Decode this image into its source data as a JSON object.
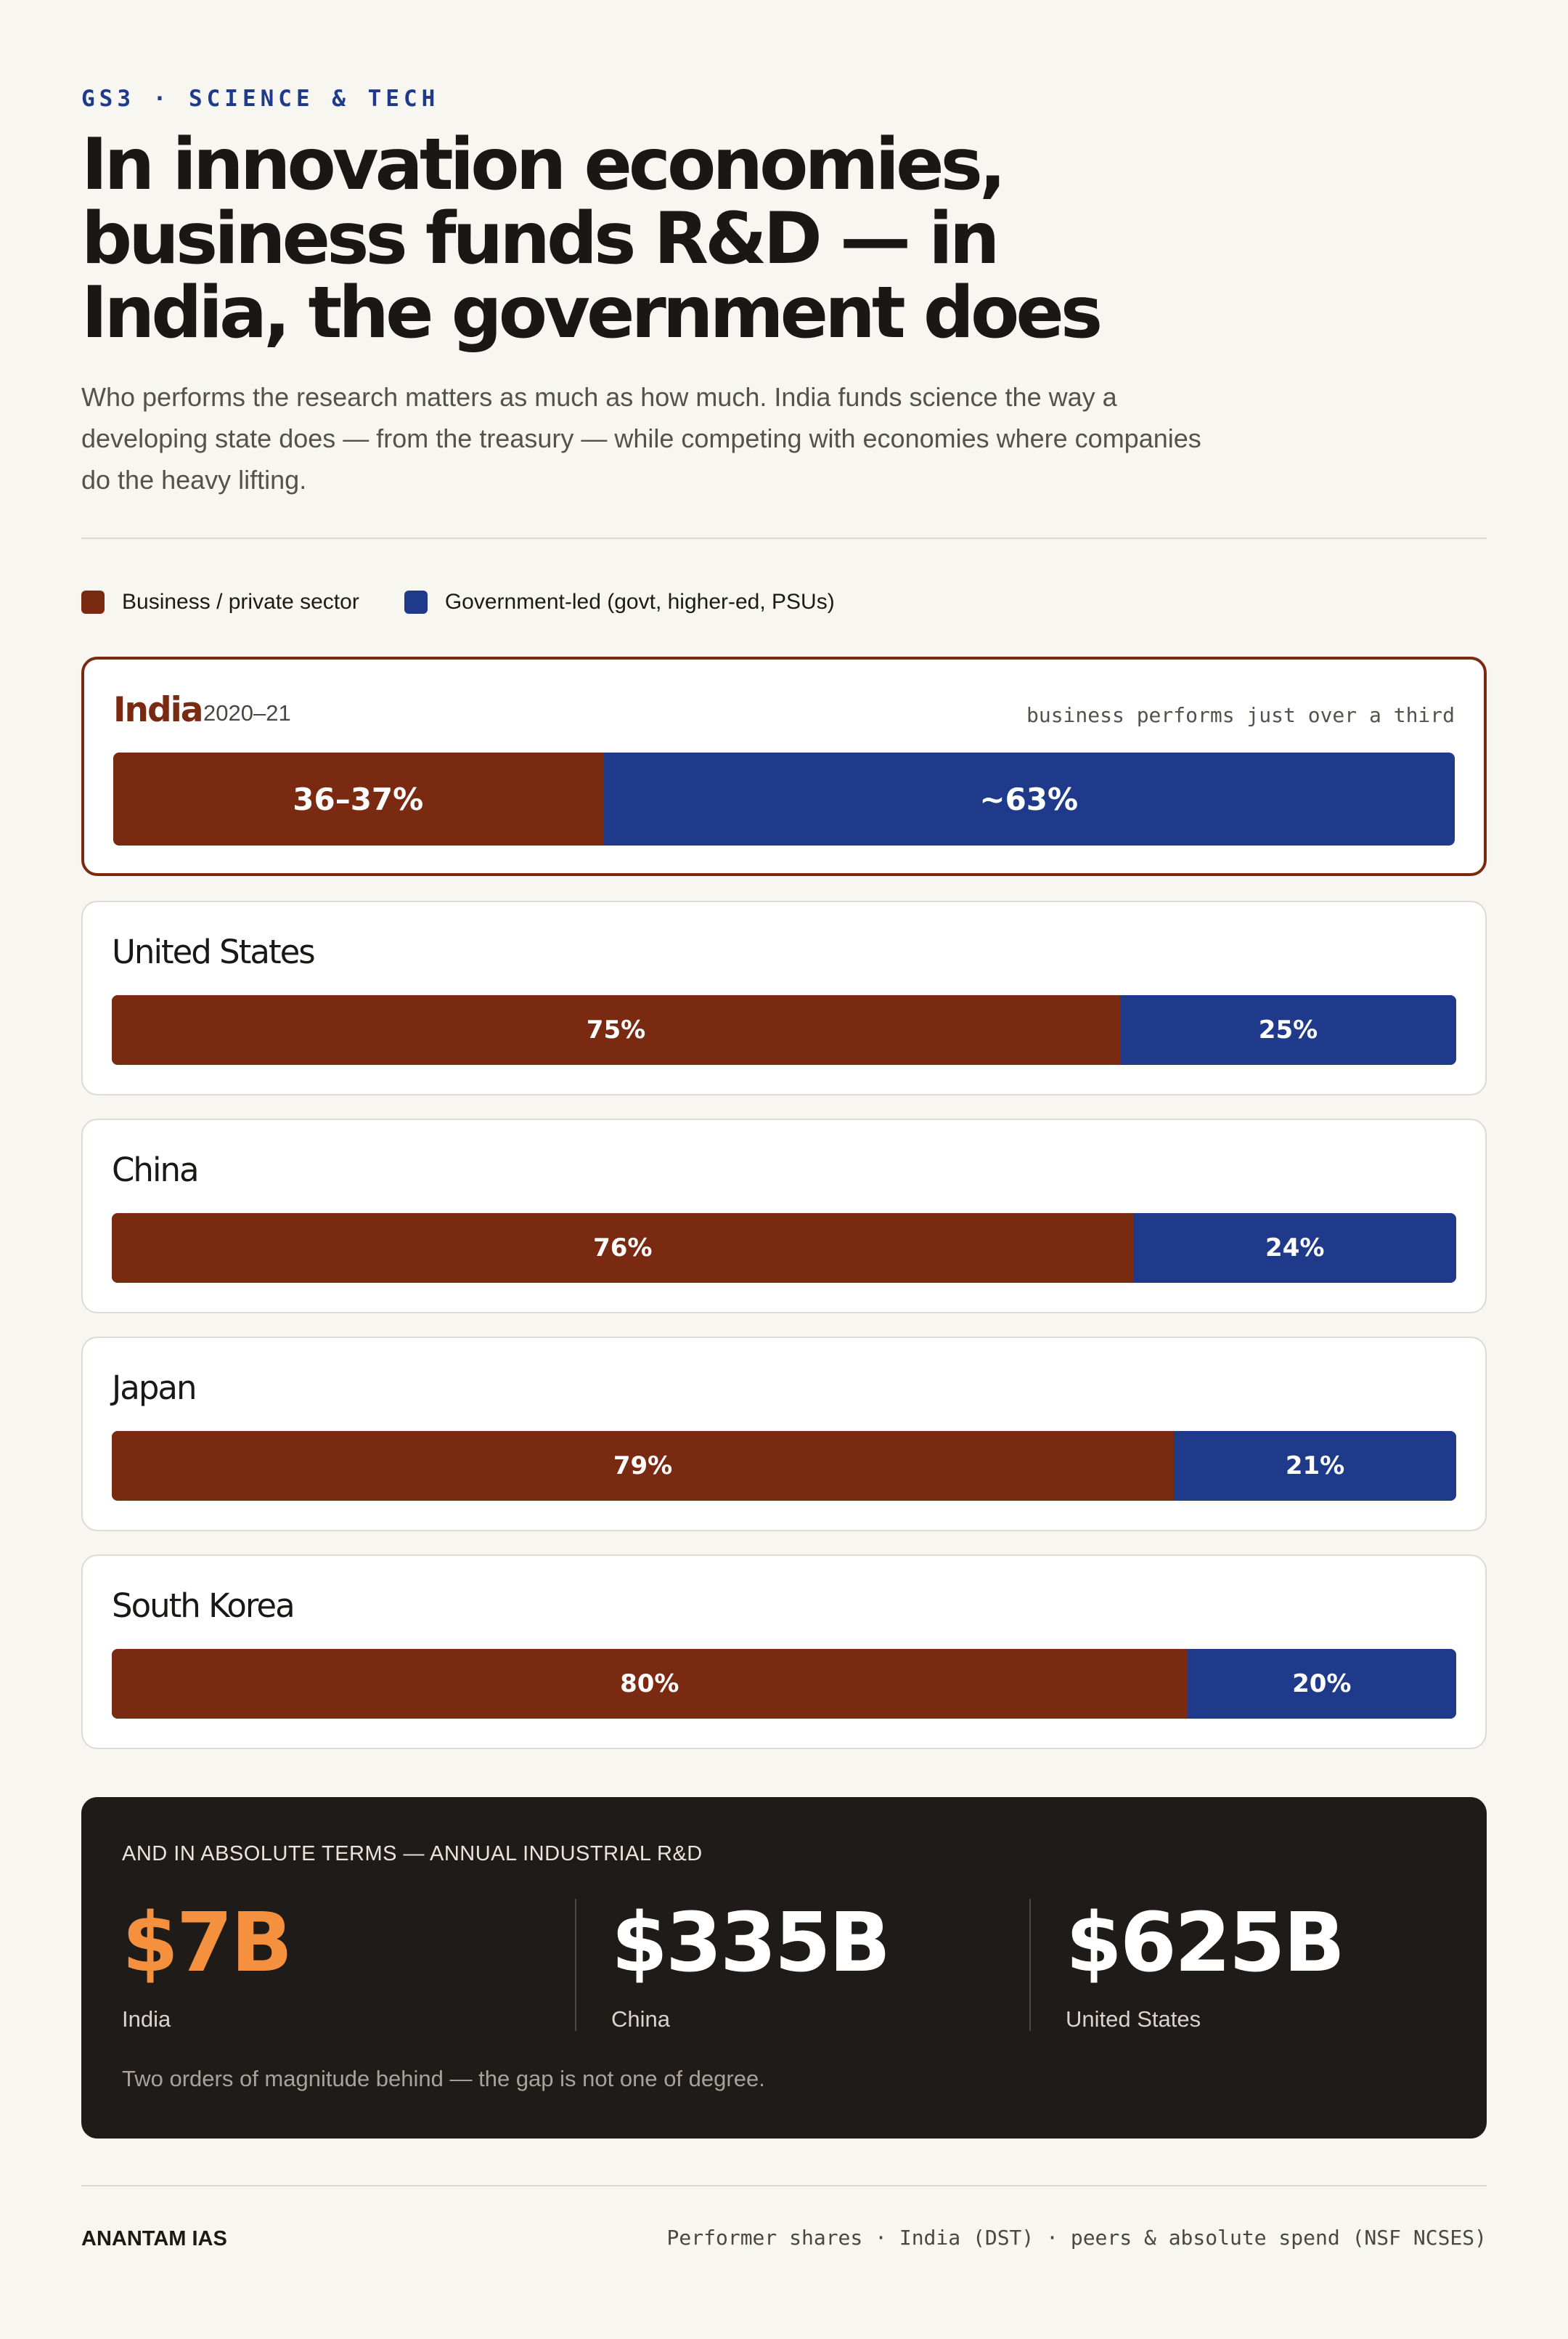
{
  "header": {
    "kicker": "GS3 · SCIENCE & TECH",
    "title": "In innovation economies, business funds R&D — in India, the government does",
    "subtitle": "Who performs the research matters as much as how much. India funds science the way a developing state does — from the treasury — while competing with economies where companies do the heavy lifting."
  },
  "legend": [
    {
      "label": "Business / private sector",
      "color": "#7b2a12"
    },
    {
      "label": "Government-led (govt, higher-ed, PSUs)",
      "color": "#1f3a8a"
    }
  ],
  "chart_data": {
    "type": "bar",
    "orientation": "horizontal-stacked-100",
    "unit": "%",
    "categories": [
      "India",
      "United States",
      "China",
      "Japan",
      "South Korea"
    ],
    "series": [
      {
        "name": "Business / private sector",
        "color": "#7b2a12",
        "values": [
          36.5,
          75,
          76,
          79,
          80
        ],
        "labels": [
          "36–37%",
          "75%",
          "76%",
          "79%",
          "80%"
        ]
      },
      {
        "name": "Government-led (govt, higher-ed, PSUs)",
        "color": "#1f3a8a",
        "values": [
          63.5,
          25,
          24,
          21,
          20
        ],
        "labels": [
          "~63%",
          "25%",
          "24%",
          "21%",
          "20%"
        ]
      }
    ],
    "annotations": {
      "India": {
        "year": "2020–21",
        "note": "business performs just over a third",
        "highlighted": true
      }
    }
  },
  "absolute": {
    "label": "AND IN ABSOLUTE TERMS — ANNUAL INDUSTRIAL R&D",
    "stats": [
      {
        "value": "$7B",
        "name": "India",
        "accent_color": "#f4903e"
      },
      {
        "value": "$335B",
        "name": "China"
      },
      {
        "value": "$625B",
        "name": "United States"
      }
    ],
    "note": "Two orders of magnitude behind — the gap is not one of degree."
  },
  "footer": {
    "brand": "ANANTAM IAS",
    "source": "Performer shares · India (DST) · peers & absolute spend (NSF NCSES)"
  }
}
